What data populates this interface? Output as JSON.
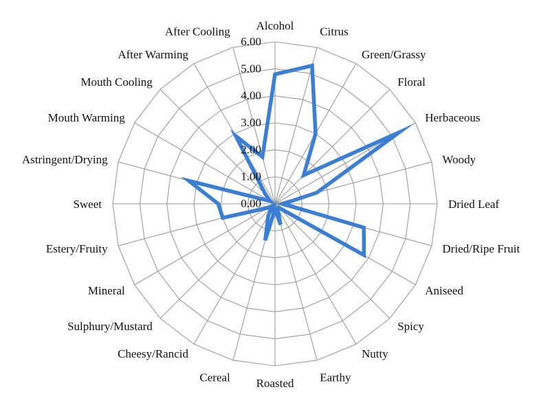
{
  "chart_data": {
    "type": "radar",
    "categories": [
      "Alcohol",
      "Citrus",
      "Green/Grassy",
      "Floral",
      "Herbaceous",
      "Woody",
      "Dried Leaf",
      "Dried/Ripe Fruit",
      "Aniseed",
      "Spicy",
      "Nutty",
      "Earthy",
      "Roasted",
      "Cereal",
      "Cheesy/Rancid",
      "Sulphury/Mustard",
      "Mineral",
      "Estery/Fruity",
      "Sweet",
      "Astringent/Drying",
      "Mouth Warming",
      "Mouth Cooling",
      "After Warming",
      "After Cooling"
    ],
    "ticks": [
      "0.00",
      "1.00",
      "2.00",
      "3.00",
      "4.00",
      "5.00",
      "6.00"
    ],
    "rlim": [
      0,
      6
    ],
    "series": [
      {
        "color": "#3a7fd5",
        "values": [
          4.8,
          5.3,
          3.0,
          1.5,
          5.3,
          1.6,
          0.3,
          3.4,
          3.8,
          0.2,
          0.2,
          0.8,
          0.2,
          1.4,
          0.5,
          0.1,
          0.3,
          2.0,
          2.1,
          3.3,
          0.2,
          0.5,
          2.9,
          1.8
        ]
      }
    ],
    "grid": true
  }
}
